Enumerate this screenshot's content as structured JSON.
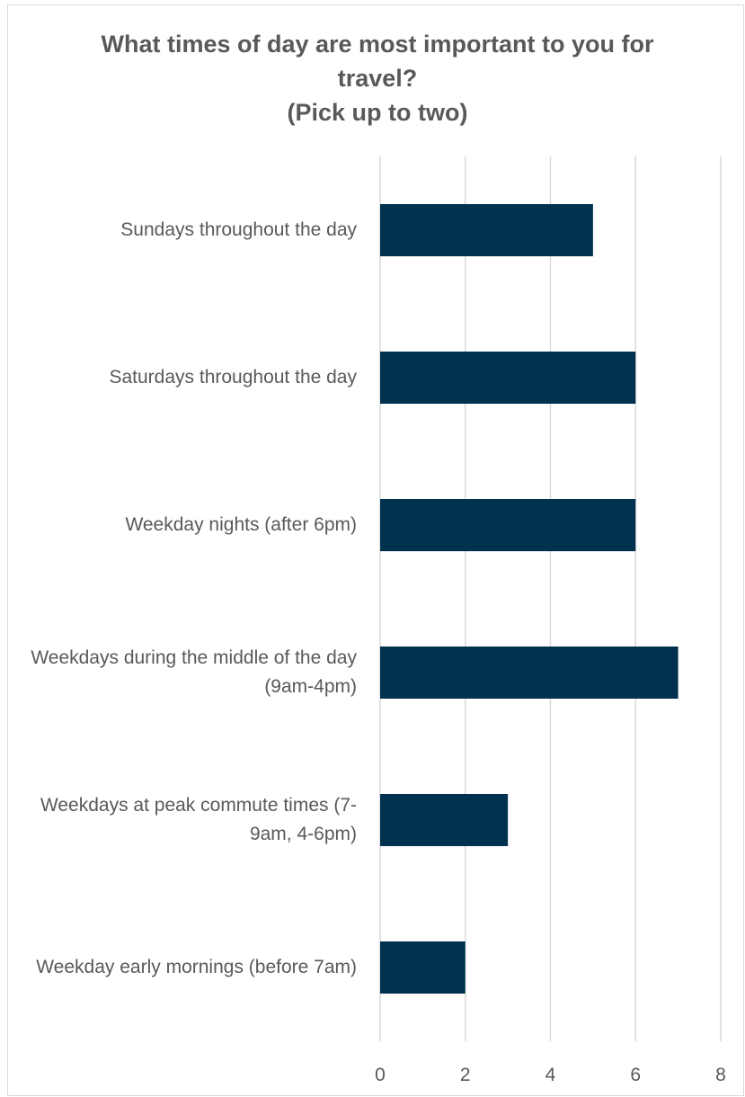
{
  "chart_data": {
    "type": "bar",
    "orientation": "horizontal",
    "title": "What times of day are most important to you for travel?",
    "subtitle": "(Pick up to two)",
    "categories": [
      "Sundays throughout the day",
      "Saturdays throughout the day",
      "Weekday nights (after 6pm)",
      "Weekdays during the middle of the day (9am-4pm)",
      "Weekdays at peak commute times (7-9am, 4-6pm)",
      "Weekday early mornings (before 7am)"
    ],
    "values": [
      5,
      6,
      6,
      7,
      3,
      2
    ],
    "color": "#00324f",
    "xlim": [
      0,
      8
    ],
    "xticks": [
      0,
      2,
      4,
      6,
      8
    ],
    "grid": true
  }
}
